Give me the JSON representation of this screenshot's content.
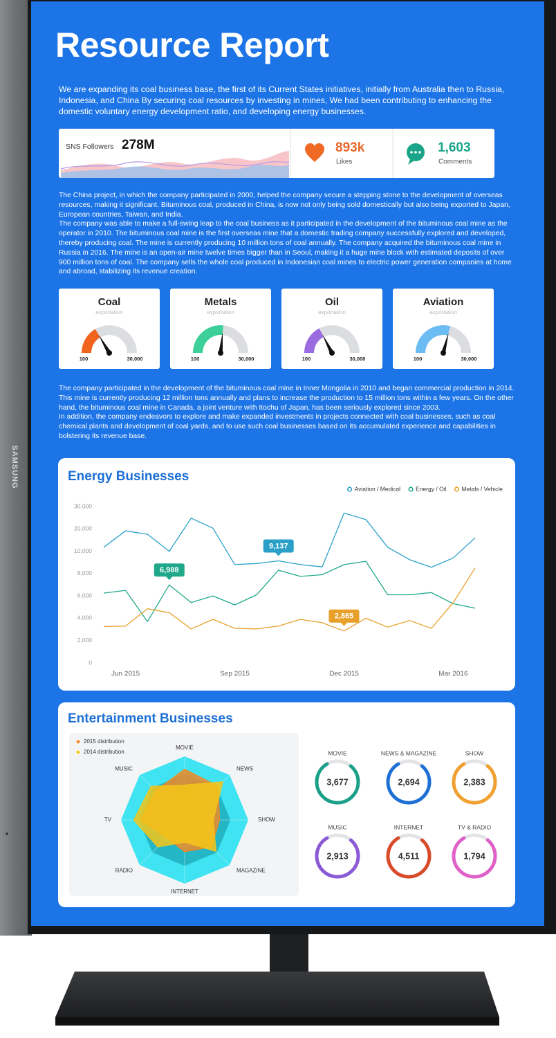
{
  "brand": "SAMSUNG",
  "header": {
    "title": "Resource Report",
    "intro": "We are expanding its coal business base, the first of its Current States initiatives, initially from Australia then to Russia, Indonesia, and China By securing coal resources by investing in mines, We had been contributing to enhancing the domestic voluntary energy development ratio, and developing energy businesses."
  },
  "stats": {
    "followers": {
      "label": "SNS Followers",
      "value": "278M"
    },
    "likes": {
      "value": "893k",
      "label": "Likes"
    },
    "comments": {
      "value": "1,603",
      "label": "Comments"
    }
  },
  "body_1": [
    "The China project, in which the company participated in 2000, helped the company secure a stepping stone to the development of overseas resources, making it significant. Bituminous coal, produced in China, is now not only being sold domestically but also being exported to Japan, European countries, Taiwan, and India.",
    "The company was able to make a full-swing leap to the coal business as it participated in the development of the bituminous coal mine as the operator in 2010. The bituminous coal mine is the first overseas mine that a domestic trading company successfully explored and developed, thereby producing coal. The mine is currently producing 10 million tons of coal annually. The company acquired the bituminous coal mine in Russia in 2016. The mine is an open-air mine twelve times bigger than in Seoul, making it a huge mine block with estimated deposits of over 900 million tons of coal. The company sells the whole coal produced in Indonesian coal mines to electric power generation companies at home and abroad, stabilizing its revenue creation."
  ],
  "gauges": [
    {
      "title": "Coal",
      "subtitle": "exportation",
      "min": 100,
      "max": {
        "value": 30000,
        "label": "30,000"
      },
      "value": 10000,
      "color": "#f0641e"
    },
    {
      "title": "Metals",
      "subtitle": "exportation",
      "min": 100,
      "max": {
        "value": 30000,
        "label": "30,000"
      },
      "value": 16000,
      "color": "#3ccf9a"
    },
    {
      "title": "Oil",
      "subtitle": "exportation",
      "min": 100,
      "max": {
        "value": 30000,
        "label": "30,000"
      },
      "value": 10500,
      "color": "#9a6ce0"
    },
    {
      "title": "Aviation",
      "subtitle": "exportation",
      "min": 100,
      "max": {
        "value": 30000,
        "label": "30,000"
      },
      "value": 17500,
      "color": "#6cbcf4"
    }
  ],
  "body_2": [
    "The company participated in the development of the bituminous coal mine in Inner Mongolia in 2010 and began commercial production in 2014. This mine is currently producing 12 million tons annually and plans to increase the production to 15 million tons within a few years. On the other hand, the bituminous coal mine in Canada, a joint venture with Itochu of Japan, has been seriously explored since 2003.",
    "In addition, the company endeavors to explore and make expanded investments in projects connected with coal businesses, such as coal chemical plants and development of coal yards, and to use such coal businesses based on its accumulated experience and capabilities in bolstering its revenue base."
  ],
  "chart_data": [
    {
      "type": "line",
      "title": "Energy Businesses",
      "categories": [
        null,
        "Jun 2015",
        null,
        null,
        null,
        null,
        "Sep 2015",
        null,
        null,
        null,
        null,
        "Dec 2015",
        null,
        null,
        null,
        null,
        "Mar 2016",
        null
      ],
      "series": [
        {
          "name": "Aviation / Medical",
          "color": "#2aa0c8",
          "values": [
            11800,
            19100,
            17600,
            10000,
            24800,
            20300,
            8800,
            8900,
            9137,
            8800,
            8600,
            27100,
            24200,
            11800,
            9250,
            8560,
            9400,
            16000
          ],
          "value_labels": [
            null,
            null,
            null,
            null,
            null,
            null,
            null,
            null,
            "9,137",
            null,
            null,
            null,
            null,
            null,
            null,
            null,
            null,
            null
          ]
        },
        {
          "name": "Energy / Oil",
          "color": "#1fa98a",
          "values": [
            6250,
            6500,
            3700,
            6988,
            5400,
            6000,
            5200,
            6100,
            8300,
            7750,
            7900,
            8800,
            9100,
            6100,
            6100,
            6300,
            5300,
            4900
          ],
          "value_labels": [
            null,
            null,
            null,
            "6,988",
            null,
            null,
            null,
            null,
            null,
            null,
            null,
            null,
            null,
            null,
            null,
            null,
            null,
            null
          ]
        },
        {
          "name": "Metals / Vehicle",
          "color": "#e8a02a",
          "values": [
            3250,
            3300,
            4850,
            4500,
            3050,
            3900,
            3100,
            3050,
            3300,
            3900,
            3600,
            2865,
            4000,
            3200,
            3800,
            3100,
            5400,
            8500
          ],
          "value_labels": [
            null,
            null,
            null,
            null,
            null,
            null,
            null,
            null,
            null,
            null,
            null,
            "2,865",
            null,
            null,
            null,
            null,
            null,
            null
          ]
        }
      ],
      "ylim": [
        0,
        30000
      ],
      "yticks": [
        0,
        {
          "value": 2000,
          "label": "2,000"
        },
        {
          "value": 4000,
          "label": "4,000"
        },
        {
          "value": 6000,
          "label": "6,000"
        },
        {
          "value": 8000,
          "label": "8,000"
        },
        {
          "value": 10000,
          "label": "10,000"
        },
        {
          "value": 20000,
          "label": "20,000"
        },
        {
          "value": 30000,
          "label": "30,000"
        }
      ],
      "grid": false,
      "legend": "top-right"
    },
    {
      "type": "radar",
      "title": "Entertainment Businesses",
      "categories": [
        "MOVIE",
        "NEWS",
        "SHOW",
        "MAGAZINE",
        "INTERNET",
        "RADIO",
        "TV",
        "MUSIC"
      ],
      "series": [
        {
          "name": "2015 distribution",
          "color": "#f08a24",
          "values": [
            80,
            75,
            55,
            60,
            50,
            40,
            70,
            65
          ]
        },
        {
          "name": "2014 distribution",
          "color": "#f5c518",
          "values": [
            55,
            85,
            45,
            70,
            35,
            60,
            80,
            75
          ]
        }
      ],
      "rlim": [
        0,
        100
      ],
      "legend": "top-left"
    }
  ],
  "donuts": [
    {
      "label": "MOVIE",
      "value": "3,677",
      "color": "#1aa089"
    },
    {
      "label": "NEWS & MAGAZINE",
      "value": "2,694",
      "color": "#1d6fd6"
    },
    {
      "label": "SHOW",
      "value": "2,383",
      "color": "#f0a030"
    },
    {
      "label": "MUSIC",
      "value": "2,913",
      "color": "#8a5ad6"
    },
    {
      "label": "INTERNET",
      "value": "4,511",
      "color": "#d84a2a"
    },
    {
      "label": "TV & RADIO",
      "value": "1,794",
      "color": "#e060c8"
    }
  ]
}
